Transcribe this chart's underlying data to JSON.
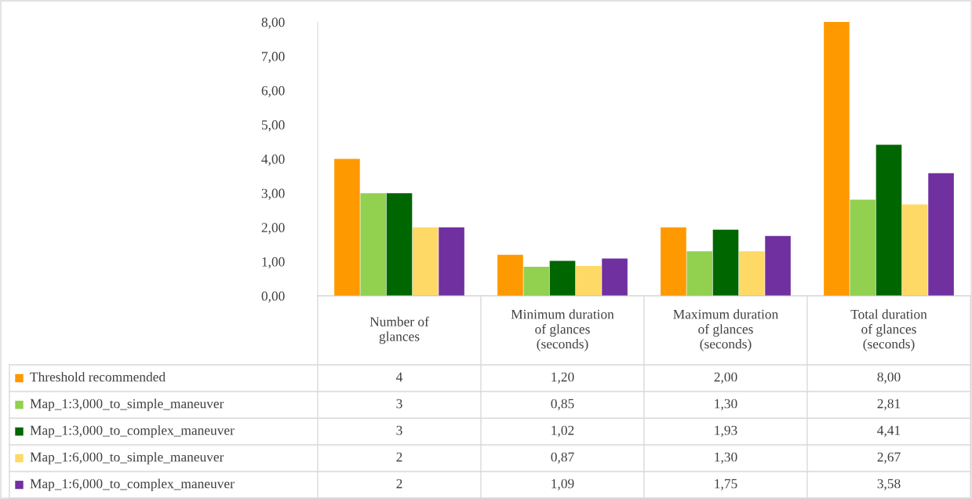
{
  "chart_data": {
    "type": "bar",
    "categories": [
      "Number of glances",
      "Minimum duration of glances (seconds)",
      "Maximum duration of glances (seconds)",
      "Total duration of glances (seconds)"
    ],
    "series": [
      {
        "name": "Threshold recommended",
        "color": "#ff9900",
        "values": [
          4,
          1.2,
          2.0,
          8.0
        ],
        "value_labels": [
          "4",
          "1,20",
          "2,00",
          "8,00"
        ]
      },
      {
        "name": "Map_1:3,000_to_simple_maneuver",
        "color": "#92d050",
        "values": [
          3,
          0.85,
          1.3,
          2.81
        ],
        "value_labels": [
          "3",
          "0,85",
          "1,30",
          "2,81"
        ]
      },
      {
        "name": "Map_1:3,000_to_complex_maneuver",
        "color": "#006600",
        "values": [
          3,
          1.02,
          1.93,
          4.41
        ],
        "value_labels": [
          "3",
          "1,02",
          "1,93",
          "4,41"
        ]
      },
      {
        "name": "Map_1:6,000_to_simple_maneuver",
        "color": "#ffd966",
        "values": [
          2,
          0.87,
          1.3,
          2.67
        ],
        "value_labels": [
          "2",
          "0,87",
          "1,30",
          "2,67"
        ]
      },
      {
        "name": "Map_1:6,000_to_complex_maneuver",
        "color": "#7030a0",
        "values": [
          2,
          1.09,
          1.75,
          3.58
        ],
        "value_labels": [
          "2",
          "1,09",
          "1,75",
          "3,58"
        ]
      }
    ],
    "ylim": [
      0,
      8
    ],
    "yticks": [
      {
        "value": 0,
        "label": "0,00"
      },
      {
        "value": 1,
        "label": "1,00"
      },
      {
        "value": 2,
        "label": "2,00"
      },
      {
        "value": 3,
        "label": "3,00"
      },
      {
        "value": 4,
        "label": "4,00"
      },
      {
        "value": 5,
        "label": "5,00"
      },
      {
        "value": 6,
        "label": "6,00"
      },
      {
        "value": 7,
        "label": "7,00"
      },
      {
        "value": 8,
        "label": "8,00"
      }
    ],
    "grid": false,
    "legend": "bottom"
  }
}
